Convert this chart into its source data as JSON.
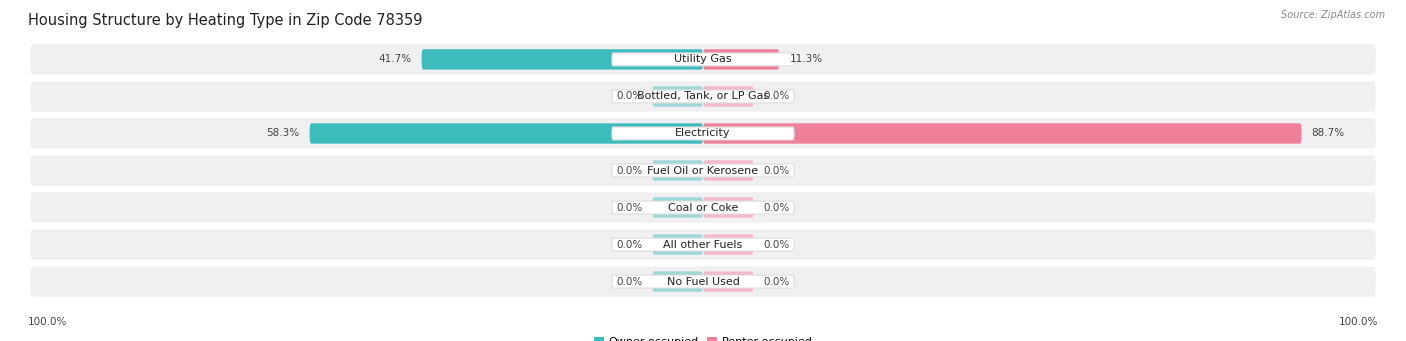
{
  "title": "Housing Structure by Heating Type in Zip Code 78359",
  "source": "Source: ZipAtlas.com",
  "categories": [
    "Utility Gas",
    "Bottled, Tank, or LP Gas",
    "Electricity",
    "Fuel Oil or Kerosene",
    "Coal or Coke",
    "All other Fuels",
    "No Fuel Used"
  ],
  "owner_values": [
    41.7,
    0.0,
    58.3,
    0.0,
    0.0,
    0.0,
    0.0
  ],
  "renter_values": [
    11.3,
    0.0,
    88.7,
    0.0,
    0.0,
    0.0,
    0.0
  ],
  "owner_color": "#3cbcbc",
  "renter_color": "#f08099",
  "owner_color_zero": "#9dd8d8",
  "renter_color_zero": "#f5b8c8",
  "row_bg_color": "#f0f0f2",
  "axis_label_left": "100.0%",
  "axis_label_right": "100.0%",
  "title_fontsize": 10.5,
  "label_fontsize": 8,
  "value_fontsize": 7.5,
  "legend_fontsize": 8
}
